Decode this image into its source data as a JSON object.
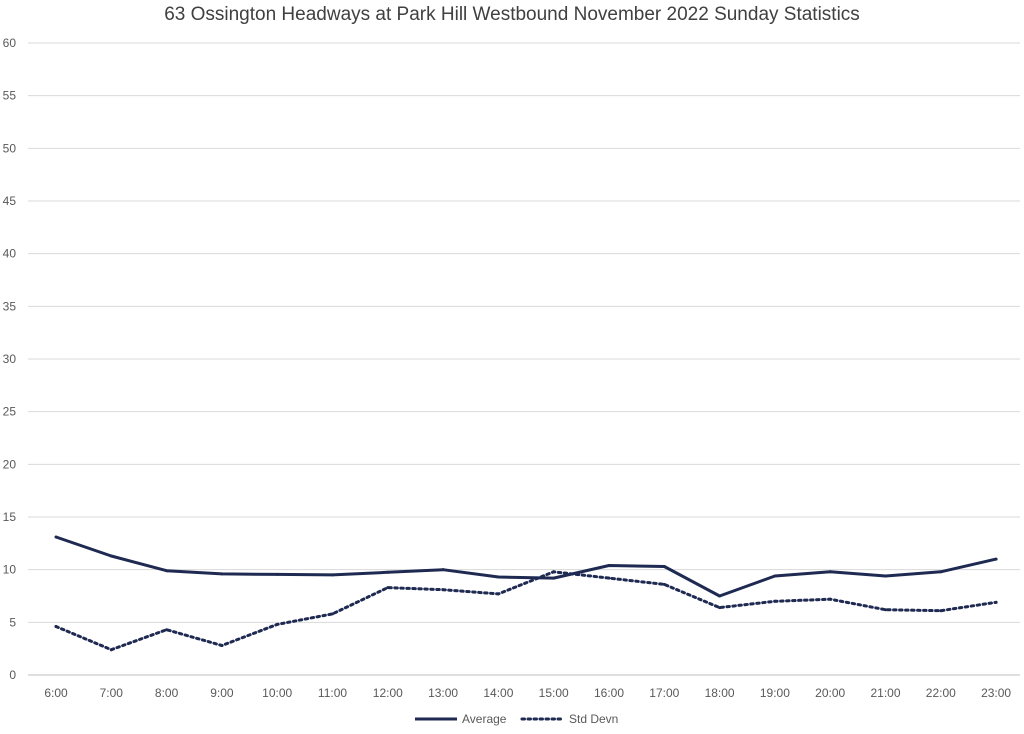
{
  "chart_data": {
    "type": "line",
    "title": "63 Ossington Headways at Park Hill Westbound November 2022 Sunday Statistics",
    "xlabel": "",
    "ylabel": "",
    "ylim": [
      0,
      60
    ],
    "y_ticks": [
      0,
      5,
      10,
      15,
      20,
      25,
      30,
      35,
      40,
      45,
      50,
      55,
      60
    ],
    "grid": true,
    "legend_position": "bottom",
    "categories": [
      "6:00",
      "7:00",
      "8:00",
      "9:00",
      "10:00",
      "11:00",
      "12:00",
      "13:00",
      "14:00",
      "15:00",
      "16:00",
      "17:00",
      "18:00",
      "19:00",
      "20:00",
      "21:00",
      "22:00",
      "23:00"
    ],
    "series": [
      {
        "name": "Average",
        "style": "solid",
        "color": "#1f2a52",
        "values": [
          13.1,
          11.3,
          9.9,
          9.6,
          9.55,
          9.5,
          9.75,
          10.0,
          9.3,
          9.2,
          10.4,
          10.3,
          7.5,
          9.4,
          9.8,
          9.4,
          9.8,
          11.0
        ]
      },
      {
        "name": "Std Devn",
        "style": "dotted",
        "color": "#1f2a52",
        "values": [
          4.6,
          2.4,
          4.3,
          2.8,
          4.8,
          5.8,
          8.3,
          8.1,
          7.7,
          9.8,
          9.2,
          8.6,
          6.4,
          7.0,
          7.2,
          6.2,
          6.1,
          6.9
        ]
      }
    ]
  }
}
